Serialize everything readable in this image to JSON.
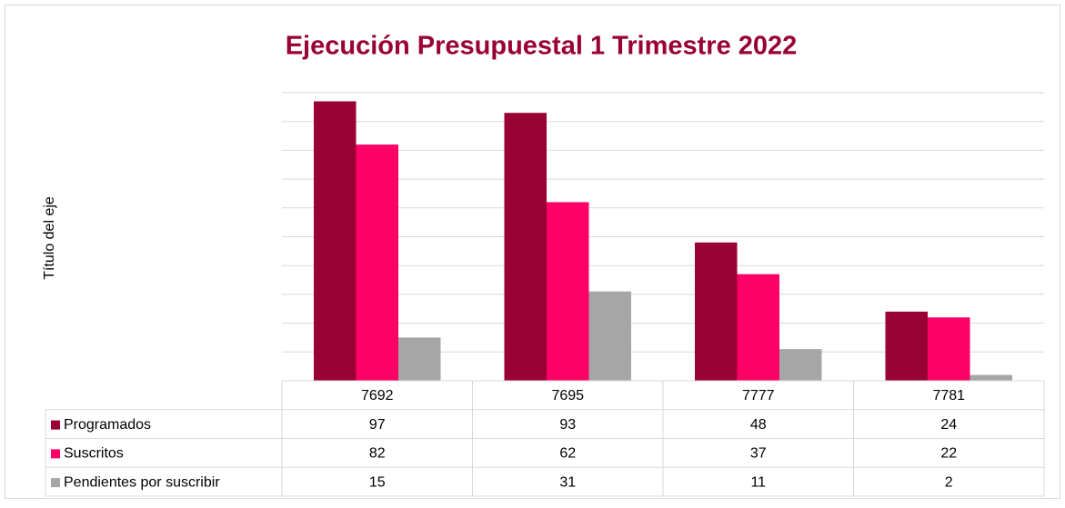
{
  "chart_data": {
    "type": "bar",
    "title": "Ejecución Presupuestal 1 Trimestre 2022",
    "y_axis_label": "Título del eje",
    "categories": [
      "7692",
      "7695",
      "7777",
      "7781"
    ],
    "series": [
      {
        "name": "Programados",
        "color": "#990033",
        "values": [
          97,
          93,
          48,
          24
        ]
      },
      {
        "name": "Suscritos",
        "color": "#ff0066",
        "values": [
          82,
          62,
          37,
          22
        ]
      },
      {
        "name": "Pendientes por suscribir",
        "color": "#a6a6a6",
        "values": [
          15,
          31,
          11,
          2
        ]
      }
    ],
    "ylim": [
      0,
      100
    ],
    "yticks": [
      0,
      10,
      20,
      30,
      40,
      50,
      60,
      70,
      80,
      90,
      100
    ],
    "grid": true
  }
}
